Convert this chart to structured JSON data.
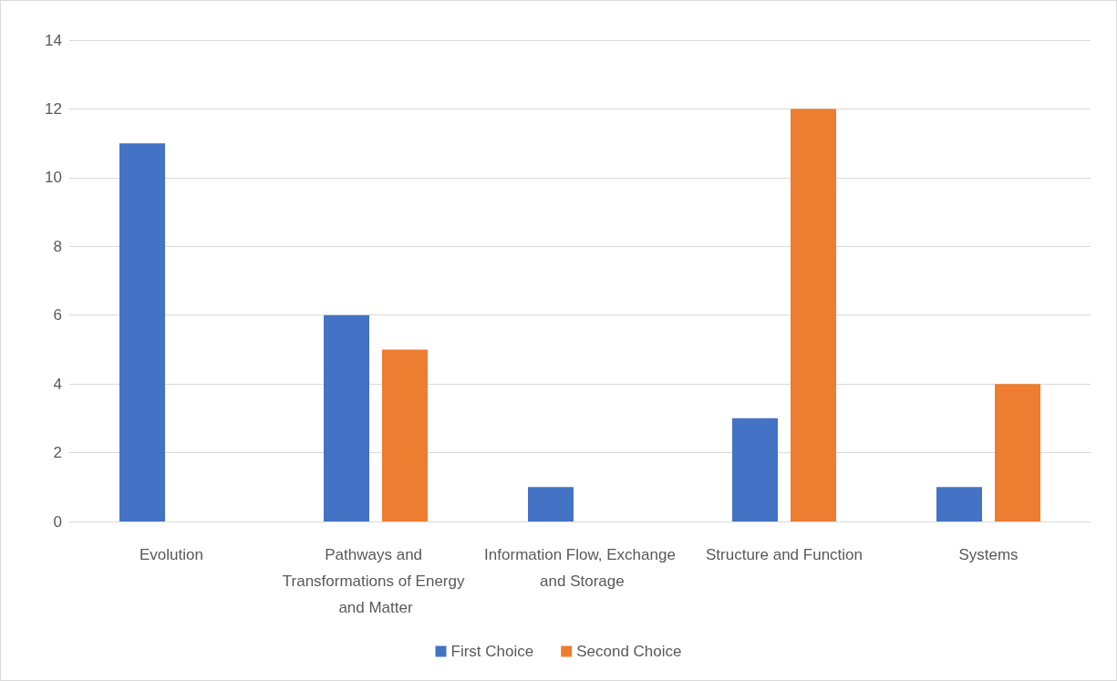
{
  "chart_data": {
    "type": "bar",
    "categories": [
      "Evolution",
      "Pathways and Transformations of Energy and Matter",
      "Information Flow, Exchange and Storage",
      "Structure and Function",
      "Systems"
    ],
    "series": [
      {
        "name": "First Choice",
        "color": "#4472c4",
        "values": [
          11,
          6,
          1,
          3,
          1
        ]
      },
      {
        "name": "Second Choice",
        "color": "#ed7d31",
        "values": [
          0,
          5,
          0,
          12,
          4
        ]
      }
    ],
    "ylim": [
      0,
      14
    ],
    "yticks": [
      0,
      2,
      4,
      6,
      8,
      10,
      12,
      14
    ],
    "grid": "y",
    "legend": "bottom"
  }
}
